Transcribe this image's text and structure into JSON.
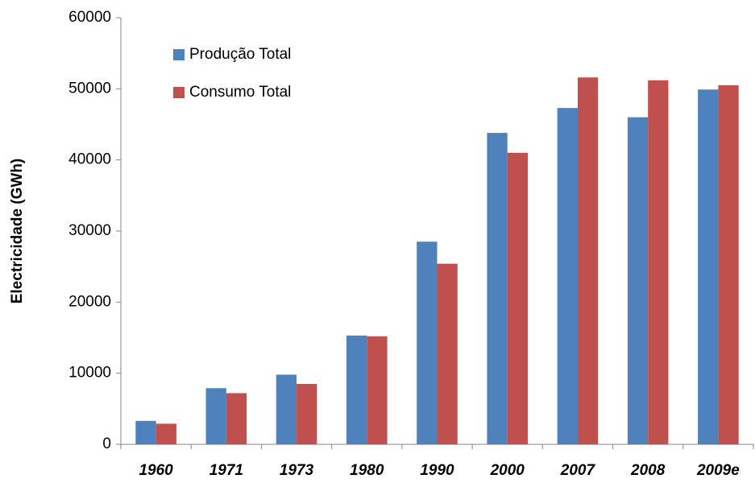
{
  "chart_data": {
    "type": "bar",
    "y_label": "Electricidade (GWh)",
    "categories": [
      "1960",
      "1971",
      "1973",
      "1980",
      "1990",
      "2000",
      "2007",
      "2008",
      "2009e"
    ],
    "series": [
      {
        "name": "Produção Total",
        "color": "#4f81bd",
        "values": [
          3300,
          7900,
          9800,
          15300,
          28500,
          43800,
          47300,
          46000,
          49900
        ]
      },
      {
        "name": "Consumo Total",
        "color": "#c0504d",
        "values": [
          2900,
          7200,
          8500,
          15200,
          25400,
          41000,
          51600,
          51200,
          50500
        ]
      }
    ],
    "ylim": [
      0,
      60000
    ],
    "yticks": [
      0,
      10000,
      20000,
      30000,
      40000,
      50000,
      60000
    ],
    "grid": false,
    "legend": "top-left"
  }
}
